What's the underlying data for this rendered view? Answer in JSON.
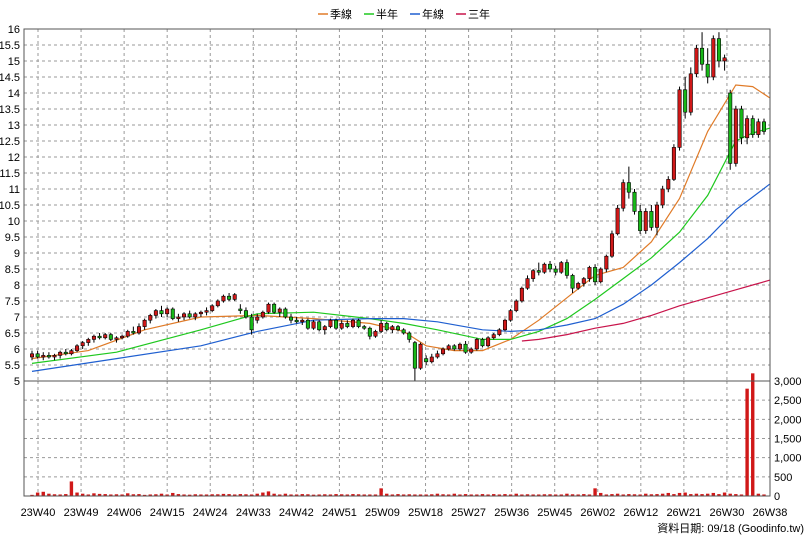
{
  "chart_data": {
    "type": "candlestick",
    "legend": {
      "placement": "top-center",
      "items": [
        {
          "name": "季線",
          "color": "#e07b28"
        },
        {
          "name": "半年",
          "color": "#1fc81f"
        },
        {
          "name": "年線",
          "color": "#1f5fd0"
        },
        {
          "name": "三年",
          "color": "#c8144b"
        }
      ]
    },
    "price_axis": {
      "ticks": [
        "16",
        "15.5",
        "15",
        "14.5",
        "14",
        "13.5",
        "13",
        "12.5",
        "12",
        "11.5",
        "11",
        "10.5",
        "10",
        "9.5",
        "9",
        "8.5",
        "8",
        "7.5",
        "7",
        "6.5",
        "6",
        "5.5",
        "5"
      ],
      "range": [
        5,
        16
      ]
    },
    "volume_axis": {
      "ticks": [
        "3,000",
        "2,500",
        "2,000",
        "1,500",
        "1,000",
        "500",
        "0"
      ],
      "range": [
        0,
        3000
      ]
    },
    "x_labels": [
      "23W40",
      "23W49",
      "24W06",
      "24W15",
      "24W24",
      "24W33",
      "24W42",
      "24W51",
      "25W09",
      "25W18",
      "25W27",
      "25W36",
      "25W45",
      "26W02",
      "26W12",
      "26W21",
      "26W30",
      "26W38"
    ],
    "candles": [
      {
        "o": 5.75,
        "h": 5.95,
        "l": 5.65,
        "c": 5.85
      },
      {
        "o": 5.85,
        "h": 5.95,
        "l": 5.7,
        "c": 5.75
      },
      {
        "o": 5.75,
        "h": 5.9,
        "l": 5.65,
        "c": 5.8
      },
      {
        "o": 5.8,
        "h": 5.9,
        "l": 5.7,
        "c": 5.75
      },
      {
        "o": 5.75,
        "h": 5.85,
        "l": 5.65,
        "c": 5.8
      },
      {
        "o": 5.8,
        "h": 5.95,
        "l": 5.7,
        "c": 5.9
      },
      {
        "o": 5.9,
        "h": 6.0,
        "l": 5.8,
        "c": 5.85
      },
      {
        "o": 5.85,
        "h": 6.0,
        "l": 5.8,
        "c": 5.95
      },
      {
        "o": 5.95,
        "h": 6.15,
        "l": 5.9,
        "c": 6.1
      },
      {
        "o": 6.1,
        "h": 6.25,
        "l": 6.0,
        "c": 6.2
      },
      {
        "o": 6.2,
        "h": 6.35,
        "l": 6.1,
        "c": 6.3
      },
      {
        "o": 6.3,
        "h": 6.45,
        "l": 6.2,
        "c": 6.4
      },
      {
        "o": 6.4,
        "h": 6.5,
        "l": 6.3,
        "c": 6.35
      },
      {
        "o": 6.35,
        "h": 6.5,
        "l": 6.3,
        "c": 6.45
      },
      {
        "o": 6.45,
        "h": 6.5,
        "l": 6.25,
        "c": 6.3
      },
      {
        "o": 6.3,
        "h": 6.4,
        "l": 6.2,
        "c": 6.35
      },
      {
        "o": 6.35,
        "h": 6.45,
        "l": 6.3,
        "c": 6.4
      },
      {
        "o": 6.4,
        "h": 6.6,
        "l": 6.35,
        "c": 6.55
      },
      {
        "o": 6.55,
        "h": 6.7,
        "l": 6.45,
        "c": 6.5
      },
      {
        "o": 6.5,
        "h": 6.8,
        "l": 6.45,
        "c": 6.7
      },
      {
        "o": 6.7,
        "h": 6.95,
        "l": 6.6,
        "c": 6.9
      },
      {
        "o": 6.9,
        "h": 7.1,
        "l": 6.8,
        "c": 7.05
      },
      {
        "o": 7.05,
        "h": 7.25,
        "l": 6.95,
        "c": 7.2
      },
      {
        "o": 7.2,
        "h": 7.35,
        "l": 7.0,
        "c": 7.1
      },
      {
        "o": 7.1,
        "h": 7.3,
        "l": 7.0,
        "c": 7.25
      },
      {
        "o": 7.25,
        "h": 7.3,
        "l": 6.9,
        "c": 6.95
      },
      {
        "o": 6.95,
        "h": 7.1,
        "l": 6.85,
        "c": 7.0
      },
      {
        "o": 7.0,
        "h": 7.15,
        "l": 6.9,
        "c": 7.1
      },
      {
        "o": 7.1,
        "h": 7.2,
        "l": 6.95,
        "c": 7.0
      },
      {
        "o": 7.0,
        "h": 7.15,
        "l": 6.9,
        "c": 7.1
      },
      {
        "o": 7.1,
        "h": 7.2,
        "l": 7.0,
        "c": 7.15
      },
      {
        "o": 7.15,
        "h": 7.3,
        "l": 7.05,
        "c": 7.2
      },
      {
        "o": 7.2,
        "h": 7.4,
        "l": 7.15,
        "c": 7.35
      },
      {
        "o": 7.35,
        "h": 7.55,
        "l": 7.3,
        "c": 7.5
      },
      {
        "o": 7.5,
        "h": 7.7,
        "l": 7.45,
        "c": 7.65
      },
      {
        "o": 7.65,
        "h": 7.75,
        "l": 7.5,
        "c": 7.55
      },
      {
        "o": 7.55,
        "h": 7.75,
        "l": 7.5,
        "c": 7.7
      },
      {
        "o": 7.25,
        "h": 7.4,
        "l": 7.1,
        "c": 7.2
      },
      {
        "o": 7.2,
        "h": 7.3,
        "l": 6.95,
        "c": 7.0
      },
      {
        "o": 7.0,
        "h": 7.1,
        "l": 6.45,
        "c": 6.6
      },
      {
        "o": 6.9,
        "h": 7.1,
        "l": 6.8,
        "c": 7.0
      },
      {
        "o": 7.0,
        "h": 7.2,
        "l": 6.95,
        "c": 7.15
      },
      {
        "o": 7.15,
        "h": 7.45,
        "l": 7.1,
        "c": 7.4
      },
      {
        "o": 7.4,
        "h": 7.45,
        "l": 7.1,
        "c": 7.15
      },
      {
        "o": 7.15,
        "h": 7.3,
        "l": 7.0,
        "c": 7.25
      },
      {
        "o": 7.25,
        "h": 7.3,
        "l": 6.95,
        "c": 7.0
      },
      {
        "o": 7.0,
        "h": 7.1,
        "l": 6.8,
        "c": 6.9
      },
      {
        "o": 6.9,
        "h": 7.0,
        "l": 6.8,
        "c": 6.85
      },
      {
        "o": 6.85,
        "h": 6.95,
        "l": 6.75,
        "c": 6.9
      },
      {
        "o": 6.9,
        "h": 6.95,
        "l": 6.6,
        "c": 6.65
      },
      {
        "o": 6.65,
        "h": 6.9,
        "l": 6.6,
        "c": 6.85
      },
      {
        "o": 6.85,
        "h": 6.9,
        "l": 6.55,
        "c": 6.6
      },
      {
        "o": 6.6,
        "h": 6.75,
        "l": 6.45,
        "c": 6.7
      },
      {
        "o": 6.7,
        "h": 6.95,
        "l": 6.65,
        "c": 6.9
      },
      {
        "o": 6.9,
        "h": 6.95,
        "l": 6.6,
        "c": 6.65
      },
      {
        "o": 6.65,
        "h": 6.9,
        "l": 6.6,
        "c": 6.8
      },
      {
        "o": 6.8,
        "h": 6.9,
        "l": 6.65,
        "c": 6.7
      },
      {
        "o": 6.7,
        "h": 6.95,
        "l": 6.65,
        "c": 6.9
      },
      {
        "o": 6.9,
        "h": 6.95,
        "l": 6.65,
        "c": 6.7
      },
      {
        "o": 6.7,
        "h": 6.75,
        "l": 6.6,
        "c": 6.65
      },
      {
        "o": 6.65,
        "h": 6.7,
        "l": 6.3,
        "c": 6.4
      },
      {
        "o": 6.4,
        "h": 6.6,
        "l": 6.35,
        "c": 6.55
      },
      {
        "o": 6.55,
        "h": 6.9,
        "l": 6.5,
        "c": 6.8
      },
      {
        "o": 6.8,
        "h": 6.85,
        "l": 6.55,
        "c": 6.6
      },
      {
        "o": 6.6,
        "h": 6.75,
        "l": 6.5,
        "c": 6.7
      },
      {
        "o": 6.7,
        "h": 6.75,
        "l": 6.55,
        "c": 6.6
      },
      {
        "o": 6.6,
        "h": 6.65,
        "l": 6.45,
        "c": 6.5
      },
      {
        "o": 6.5,
        "h": 6.55,
        "l": 6.2,
        "c": 6.3
      },
      {
        "o": 6.2,
        "h": 6.25,
        "l": 5.0,
        "c": 5.4
      },
      {
        "o": 5.4,
        "h": 6.2,
        "l": 5.35,
        "c": 6.15
      },
      {
        "o": 5.7,
        "h": 5.8,
        "l": 5.5,
        "c": 5.6
      },
      {
        "o": 5.6,
        "h": 5.85,
        "l": 5.55,
        "c": 5.75
      },
      {
        "o": 5.75,
        "h": 5.95,
        "l": 5.7,
        "c": 5.85
      },
      {
        "o": 5.85,
        "h": 6.05,
        "l": 5.8,
        "c": 6.0
      },
      {
        "o": 6.0,
        "h": 6.15,
        "l": 5.95,
        "c": 6.1
      },
      {
        "o": 6.1,
        "h": 6.15,
        "l": 5.95,
        "c": 6.0
      },
      {
        "o": 6.0,
        "h": 6.2,
        "l": 5.95,
        "c": 6.15
      },
      {
        "o": 6.15,
        "h": 6.25,
        "l": 5.85,
        "c": 5.9
      },
      {
        "o": 5.9,
        "h": 6.05,
        "l": 5.85,
        "c": 6.0
      },
      {
        "o": 6.0,
        "h": 6.35,
        "l": 5.95,
        "c": 6.3
      },
      {
        "o": 6.3,
        "h": 6.35,
        "l": 6.05,
        "c": 6.1
      },
      {
        "o": 6.1,
        "h": 6.4,
        "l": 6.05,
        "c": 6.35
      },
      {
        "o": 6.35,
        "h": 6.5,
        "l": 6.3,
        "c": 6.45
      },
      {
        "o": 6.45,
        "h": 6.65,
        "l": 6.4,
        "c": 6.6
      },
      {
        "o": 6.6,
        "h": 6.95,
        "l": 6.55,
        "c": 6.9
      },
      {
        "o": 6.9,
        "h": 7.25,
        "l": 6.85,
        "c": 7.2
      },
      {
        "o": 7.2,
        "h": 7.55,
        "l": 7.15,
        "c": 7.5
      },
      {
        "o": 7.5,
        "h": 7.95,
        "l": 7.45,
        "c": 7.9
      },
      {
        "o": 7.9,
        "h": 8.3,
        "l": 7.85,
        "c": 8.2
      },
      {
        "o": 8.2,
        "h": 8.5,
        "l": 8.1,
        "c": 8.45
      },
      {
        "o": 8.45,
        "h": 8.7,
        "l": 8.3,
        "c": 8.4
      },
      {
        "o": 8.4,
        "h": 8.7,
        "l": 8.35,
        "c": 8.65
      },
      {
        "o": 8.65,
        "h": 8.75,
        "l": 8.4,
        "c": 8.5
      },
      {
        "o": 8.5,
        "h": 8.6,
        "l": 8.3,
        "c": 8.4
      },
      {
        "o": 8.4,
        "h": 8.75,
        "l": 8.35,
        "c": 8.7
      },
      {
        "o": 8.7,
        "h": 8.8,
        "l": 8.2,
        "c": 8.3
      },
      {
        "o": 8.3,
        "h": 8.35,
        "l": 7.75,
        "c": 7.9
      },
      {
        "o": 7.9,
        "h": 8.1,
        "l": 7.85,
        "c": 8.05
      },
      {
        "o": 8.05,
        "h": 8.25,
        "l": 7.95,
        "c": 8.2
      },
      {
        "o": 8.2,
        "h": 8.6,
        "l": 8.1,
        "c": 8.55
      },
      {
        "o": 8.55,
        "h": 8.65,
        "l": 8.0,
        "c": 8.1
      },
      {
        "o": 8.1,
        "h": 8.55,
        "l": 8.05,
        "c": 8.5
      },
      {
        "o": 8.5,
        "h": 8.95,
        "l": 8.4,
        "c": 8.9
      },
      {
        "o": 8.9,
        "h": 9.7,
        "l": 8.85,
        "c": 9.6
      },
      {
        "o": 9.6,
        "h": 10.5,
        "l": 9.55,
        "c": 10.4
      },
      {
        "o": 10.4,
        "h": 11.3,
        "l": 10.3,
        "c": 11.2
      },
      {
        "o": 11.2,
        "h": 11.7,
        "l": 10.7,
        "c": 10.9
      },
      {
        "o": 10.9,
        "h": 11.0,
        "l": 10.2,
        "c": 10.3
      },
      {
        "o": 10.3,
        "h": 10.5,
        "l": 9.6,
        "c": 9.7
      },
      {
        "o": 9.7,
        "h": 10.4,
        "l": 9.6,
        "c": 10.3
      },
      {
        "o": 10.3,
        "h": 10.5,
        "l": 9.7,
        "c": 9.8
      },
      {
        "o": 9.8,
        "h": 10.6,
        "l": 9.55,
        "c": 10.5
      },
      {
        "o": 10.5,
        "h": 11.1,
        "l": 10.4,
        "c": 11.0
      },
      {
        "o": 11.0,
        "h": 11.4,
        "l": 10.9,
        "c": 11.3
      },
      {
        "o": 11.3,
        "h": 12.4,
        "l": 11.25,
        "c": 12.3
      },
      {
        "o": 12.3,
        "h": 14.2,
        "l": 12.2,
        "c": 14.1
      },
      {
        "o": 14.1,
        "h": 14.5,
        "l": 13.2,
        "c": 13.4
      },
      {
        "o": 13.4,
        "h": 14.8,
        "l": 13.3,
        "c": 14.6
      },
      {
        "o": 14.6,
        "h": 15.5,
        "l": 14.5,
        "c": 15.4
      },
      {
        "o": 15.4,
        "h": 15.9,
        "l": 14.7,
        "c": 14.9
      },
      {
        "o": 14.9,
        "h": 15.4,
        "l": 14.3,
        "c": 14.5
      },
      {
        "o": 14.5,
        "h": 15.8,
        "l": 14.4,
        "c": 15.7
      },
      {
        "o": 15.7,
        "h": 15.9,
        "l": 14.8,
        "c": 15.0
      },
      {
        "o": 15.0,
        "h": 15.2,
        "l": 14.7,
        "c": 15.1
      },
      {
        "o": 14.0,
        "h": 14.1,
        "l": 11.6,
        "c": 11.8
      },
      {
        "o": 11.8,
        "h": 13.6,
        "l": 11.7,
        "c": 13.5
      },
      {
        "o": 13.5,
        "h": 13.6,
        "l": 12.4,
        "c": 12.6
      },
      {
        "o": 12.6,
        "h": 13.3,
        "l": 12.4,
        "c": 13.2
      },
      {
        "o": 13.2,
        "h": 13.3,
        "l": 12.6,
        "c": 12.7
      },
      {
        "o": 12.7,
        "h": 13.2,
        "l": 12.6,
        "c": 13.1
      },
      {
        "o": 13.1,
        "h": 13.2,
        "l": 12.7,
        "c": 12.8
      }
    ],
    "ma_series": [
      {
        "name": "季線",
        "color": "#e07b28",
        "values": [
          [
            0,
            5.7
          ],
          [
            10,
            5.95
          ],
          [
            20,
            6.6
          ],
          [
            30,
            7.0
          ],
          [
            40,
            7.05
          ],
          [
            50,
            6.95
          ],
          [
            60,
            6.8
          ],
          [
            66,
            6.55
          ],
          [
            70,
            6.1
          ],
          [
            75,
            5.95
          ],
          [
            80,
            5.95
          ],
          [
            85,
            6.3
          ],
          [
            90,
            6.9
          ],
          [
            95,
            7.6
          ],
          [
            100,
            8.3
          ],
          [
            105,
            8.55
          ],
          [
            110,
            9.35
          ],
          [
            115,
            10.7
          ],
          [
            120,
            12.8
          ],
          [
            125,
            14.25
          ],
          [
            128,
            14.2
          ],
          [
            131,
            13.85
          ]
        ]
      },
      {
        "name": "半年",
        "color": "#1fc81f",
        "values": [
          [
            0,
            5.55
          ],
          [
            15,
            5.9
          ],
          [
            30,
            6.6
          ],
          [
            40,
            7.1
          ],
          [
            50,
            7.15
          ],
          [
            60,
            6.95
          ],
          [
            66,
            6.8
          ],
          [
            72,
            6.6
          ],
          [
            80,
            6.3
          ],
          [
            85,
            6.3
          ],
          [
            90,
            6.55
          ],
          [
            95,
            6.95
          ],
          [
            100,
            7.55
          ],
          [
            105,
            8.2
          ],
          [
            110,
            8.85
          ],
          [
            115,
            9.65
          ],
          [
            120,
            10.8
          ],
          [
            125,
            12.5
          ],
          [
            128,
            12.75
          ],
          [
            131,
            12.9
          ]
        ]
      },
      {
        "name": "年線",
        "color": "#1f5fd0",
        "values": [
          [
            0,
            5.3
          ],
          [
            15,
            5.7
          ],
          [
            30,
            6.1
          ],
          [
            40,
            6.55
          ],
          [
            50,
            6.9
          ],
          [
            60,
            6.95
          ],
          [
            66,
            6.95
          ],
          [
            72,
            6.85
          ],
          [
            80,
            6.6
          ],
          [
            85,
            6.55
          ],
          [
            90,
            6.6
          ],
          [
            95,
            6.75
          ],
          [
            100,
            6.95
          ],
          [
            105,
            7.4
          ],
          [
            110,
            8.0
          ],
          [
            115,
            8.7
          ],
          [
            120,
            9.45
          ],
          [
            125,
            10.35
          ],
          [
            128,
            10.75
          ],
          [
            131,
            11.15
          ]
        ]
      },
      {
        "name": "三年",
        "color": "#c8144b",
        "values": [
          [
            87,
            6.25
          ],
          [
            90,
            6.3
          ],
          [
            95,
            6.45
          ],
          [
            100,
            6.65
          ],
          [
            105,
            6.8
          ],
          [
            110,
            7.05
          ],
          [
            115,
            7.35
          ],
          [
            120,
            7.6
          ],
          [
            125,
            7.85
          ],
          [
            128,
            8.0
          ],
          [
            131,
            8.15
          ]
        ]
      }
    ],
    "volumes": [
      30,
      90,
      110,
      60,
      45,
      40,
      50,
      380,
      90,
      60,
      40,
      70,
      55,
      50,
      40,
      45,
      40,
      70,
      45,
      50,
      30,
      40,
      45,
      60,
      40,
      80,
      50,
      40,
      35,
      45,
      40,
      40,
      45,
      45,
      55,
      50,
      40,
      50,
      45,
      40,
      60,
      90,
      120,
      60,
      40,
      60,
      40,
      40,
      50,
      45,
      35,
      40,
      45,
      40,
      50,
      45,
      40,
      50,
      45,
      40,
      40,
      40,
      200,
      60,
      40,
      50,
      40,
      45,
      40,
      40,
      40,
      45,
      60,
      45,
      40,
      60,
      40,
      50,
      40,
      40,
      50,
      40,
      50,
      40,
      50,
      40,
      60,
      40,
      45,
      40,
      40,
      45,
      45,
      40,
      40,
      60,
      45,
      40,
      50,
      40,
      200,
      80,
      40,
      50,
      60,
      40,
      50,
      45,
      40,
      60,
      45,
      50,
      60,
      80,
      50,
      80,
      90,
      50,
      60,
      50,
      60,
      80,
      50,
      90,
      60,
      50,
      40,
      2800,
      3200,
      60,
      40
    ],
    "footer": "資料日期: 09/18  (Goodinfo.tw)"
  }
}
